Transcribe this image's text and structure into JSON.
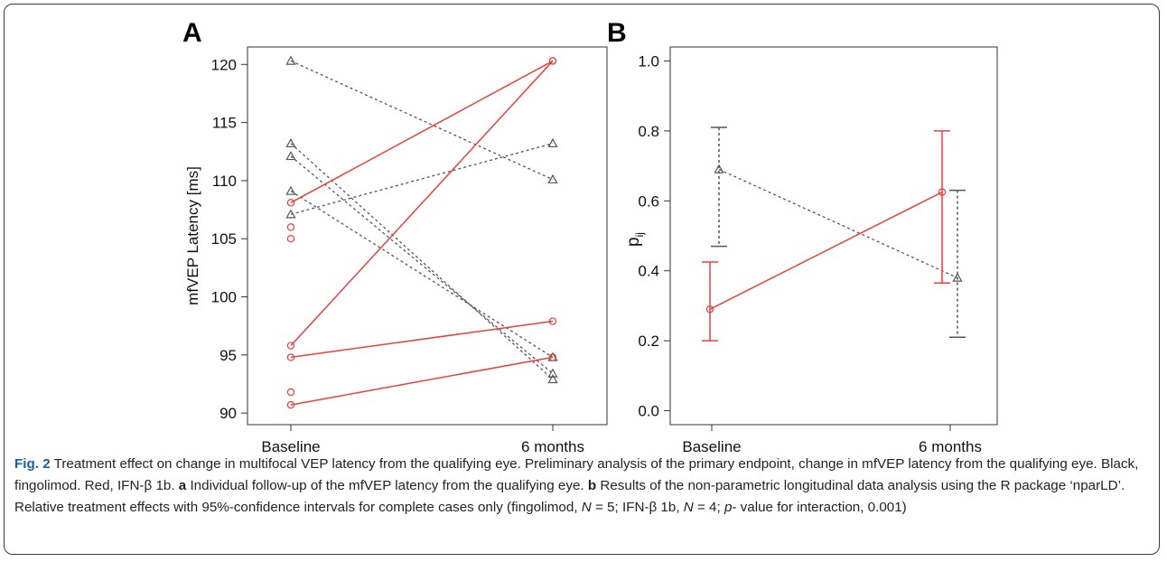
{
  "panel_a_label": "A",
  "panel_b_label": "B",
  "colors": {
    "fingolimod": "#555555",
    "ifn": "#e8403a",
    "caption_label": "#1a5fa8"
  },
  "chart_data": [
    {
      "type": "line",
      "panel": "A",
      "xlabel": "",
      "ylabel": "mfVEP Latency [ms]",
      "categories": [
        "Baseline",
        "6 months"
      ],
      "ylim": [
        89,
        121.5
      ],
      "yticks": [
        90,
        95,
        100,
        105,
        110,
        115,
        120
      ],
      "grid": false,
      "series": [
        {
          "group": "fingolimod",
          "marker": "triangle",
          "style": "dashed",
          "values": [
            120.3,
            110.1
          ]
        },
        {
          "group": "fingolimod",
          "marker": "triangle",
          "style": "dashed",
          "values": [
            113.2,
            92.9
          ]
        },
        {
          "group": "fingolimod",
          "marker": "triangle",
          "style": "dashed",
          "values": [
            112.1,
            93.4
          ]
        },
        {
          "group": "fingolimod",
          "marker": "triangle",
          "style": "dashed",
          "values": [
            109.1,
            94.8
          ]
        },
        {
          "group": "fingolimod",
          "marker": "triangle",
          "style": "dashed",
          "values": [
            107.1,
            113.2
          ]
        },
        {
          "group": "ifn",
          "marker": "circle",
          "style": "solid",
          "values": [
            108.1,
            120.3
          ]
        },
        {
          "group": "ifn",
          "marker": "circle",
          "style": "solid",
          "values": [
            95.8,
            120.3
          ]
        },
        {
          "group": "ifn",
          "marker": "circle",
          "style": "solid",
          "values": [
            94.8,
            97.9
          ]
        },
        {
          "group": "ifn",
          "marker": "circle",
          "style": "solid",
          "values": [
            90.7,
            94.8
          ]
        },
        {
          "group": "ifn",
          "marker": "circle",
          "style": "none",
          "values": [
            106.0,
            null
          ]
        },
        {
          "group": "ifn",
          "marker": "circle",
          "style": "none",
          "values": [
            105.0,
            null
          ]
        },
        {
          "group": "ifn",
          "marker": "circle",
          "style": "none",
          "values": [
            91.8,
            null
          ]
        }
      ]
    },
    {
      "type": "line",
      "panel": "B",
      "xlabel": "",
      "ylabel_main": "p",
      "ylabel_sub": "ij",
      "categories": [
        "Baseline",
        "6 months"
      ],
      "ylim": [
        -0.04,
        1.04
      ],
      "yticks": [
        "0.0",
        "0.2",
        "0.4",
        "0.6",
        "0.8",
        "1.0"
      ],
      "grid": false,
      "series": [
        {
          "group": "fingolimod",
          "marker": "triangle",
          "style": "dashed",
          "values": [
            0.69,
            0.38
          ],
          "lower": [
            0.47,
            0.21
          ],
          "upper": [
            0.81,
            0.63
          ]
        },
        {
          "group": "ifn",
          "marker": "circle",
          "style": "solid",
          "values": [
            0.29,
            0.625
          ],
          "lower": [
            0.2,
            0.365
          ],
          "upper": [
            0.425,
            0.8
          ]
        }
      ]
    }
  ],
  "caption": {
    "label": "Fig. 2",
    "part1": " Treatment effect on change in multifocal VEP latency from the qualifying eye. Preliminary analysis of the primary endpoint, change in mfVEP latency from the qualifying eye. Black, fingolimod. Red, IFN-β 1b. ",
    "a_label": "a",
    "part2": " Individual follow-up of the mfVEP latency from the qualifying eye. ",
    "b_label": "b",
    "part3": " Results of the non-parametric longitudinal data analysis using the R package ‘nparLD’. Relative treatment effects with 95%-confidence intervals for complete cases only (fingolimod, ",
    "n1_var": "N",
    "n1_val": " = 5; IFN-β 1b, ",
    "n2_var": "N",
    "n2_val": " = 4; ",
    "p_var": "p",
    "p_rest": "- value for interaction, 0.001)"
  }
}
